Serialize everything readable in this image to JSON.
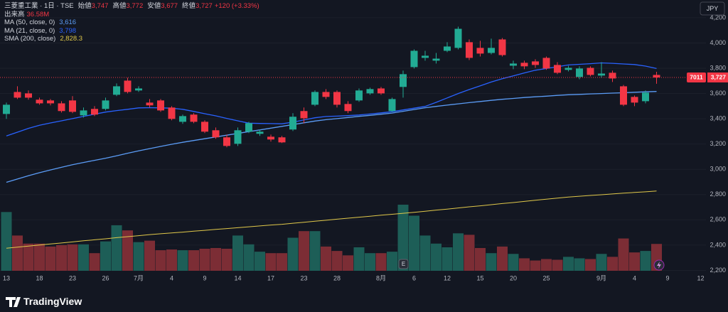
{
  "header": {
    "symbol": "三菱重工業 · 1日 · TSE",
    "ohlc": [
      {
        "label": "始値",
        "value": "3,747"
      },
      {
        "label": "高値",
        "value": "3,772"
      },
      {
        "label": "安値",
        "value": "3,677"
      },
      {
        "label": "終値",
        "value": "3,727"
      }
    ],
    "change": "+120 (+3.33%)",
    "currency": "JPY",
    "brand": "TradingView",
    "symbol_tag": "7011",
    "last_price_label": "3,727"
  },
  "chart_data": {
    "type": "candlestick",
    "title": "三菱重工業 · 1日 · TSE",
    "categories": [
      "13",
      null,
      null,
      "18",
      null,
      null,
      "23",
      null,
      null,
      "26",
      null,
      null,
      "7月",
      null,
      null,
      "4",
      null,
      null,
      "9",
      null,
      null,
      "14",
      null,
      null,
      "17",
      null,
      null,
      "23",
      null,
      null,
      "28",
      null,
      null,
      null,
      "8月",
      null,
      null,
      "6",
      null,
      null,
      "12",
      null,
      null,
      "15",
      null,
      null,
      "20",
      null,
      null,
      "25",
      null,
      null,
      null,
      null,
      "9月",
      null,
      null,
      "4",
      null,
      null,
      "9",
      null,
      null,
      "12"
    ],
    "open": [
      3438,
      3612,
      3601,
      3551,
      3545,
      3522,
      3545,
      3427,
      3478,
      3478,
      3590,
      3702,
      3624,
      3528,
      3545,
      3489,
      3376,
      3433,
      3376,
      3309,
      3253,
      3202,
      3298,
      3281,
      3258,
      3253,
      3315,
      3461,
      3511,
      3612,
      3612,
      3517,
      3545,
      3601,
      3640,
      3461,
      3652,
      3809,
      3882,
      3860,
      3938,
      3961,
      4006,
      3961,
      3921,
      4028,
      3820,
      3843,
      3854,
      3882,
      3826,
      3787,
      3731,
      3803,
      3742,
      3764,
      3657,
      3573,
      3539,
      3747,
      null,
      null,
      null,
      null
    ],
    "high": [
      3528,
      3657,
      3624,
      3567,
      3556,
      3539,
      3579,
      3489,
      3500,
      3567,
      3680,
      3725,
      3657,
      3556,
      3556,
      3500,
      3433,
      3444,
      3388,
      3331,
      3275,
      3331,
      3376,
      3315,
      3275,
      3264,
      3444,
      3489,
      3624,
      3635,
      3624,
      3539,
      3640,
      3646,
      3652,
      3567,
      3781,
      3949,
      3938,
      3921,
      4006,
      4129,
      4028,
      4017,
      4034,
      4039,
      3860,
      3860,
      3871,
      3893,
      3848,
      3820,
      3815,
      3815,
      3848,
      3781,
      3668,
      3584,
      3624,
      3772,
      null,
      null,
      null,
      null
    ],
    "low": [
      3399,
      3556,
      3551,
      3511,
      3506,
      3449,
      3444,
      3410,
      3421,
      3466,
      3579,
      3601,
      3612,
      3489,
      3455,
      3388,
      3360,
      3365,
      3287,
      3242,
      3174,
      3185,
      3287,
      3264,
      3219,
      3208,
      3303,
      3365,
      3500,
      3556,
      3489,
      3444,
      3534,
      3590,
      3590,
      3455,
      3567,
      3798,
      3860,
      3837,
      3927,
      3949,
      3865,
      3893,
      3910,
      3893,
      3792,
      3792,
      3803,
      3787,
      3753,
      3775,
      3713,
      3736,
      3725,
      3691,
      3500,
      3500,
      3522,
      3677,
      null,
      null,
      null,
      null
    ],
    "close": [
      3511,
      3567,
      3567,
      3522,
      3522,
      3461,
      3455,
      3466,
      3433,
      3545,
      3657,
      3612,
      3640,
      3506,
      3466,
      3399,
      3421,
      3376,
      3298,
      3253,
      3185,
      3309,
      3365,
      3298,
      3236,
      3213,
      3416,
      3404,
      3612,
      3573,
      3511,
      3461,
      3624,
      3635,
      3601,
      3556,
      3753,
      3938,
      3899,
      3876,
      3972,
      4112,
      3882,
      3916,
      3961,
      3904,
      3837,
      3815,
      3826,
      3798,
      3764,
      3803,
      3798,
      3747,
      3758,
      3719,
      3511,
      3528,
      3607,
      3727,
      null,
      null,
      null,
      null
    ],
    "up_color": "#22ab94",
    "down_color": "#f23645",
    "volume": {
      "name": "出来高",
      "last_label": "36.58M",
      "up_color": "#1d5e57",
      "down_color": "#7c2d35",
      "values": [
        80,
        48,
        37,
        37,
        33,
        35,
        36,
        36,
        24,
        40,
        62,
        55,
        39,
        41,
        28,
        29,
        28,
        28,
        30,
        31,
        30,
        48,
        36,
        26,
        24,
        24,
        45,
        54,
        54,
        33,
        27,
        21,
        32,
        24,
        24,
        26,
        90,
        75,
        48,
        37,
        32,
        51,
        49,
        31,
        24,
        33,
        23,
        17,
        14,
        16,
        15,
        19,
        17,
        16,
        23,
        19,
        44,
        25,
        27,
        36.58,
        null,
        null,
        null,
        null
      ]
    },
    "series": [
      {
        "name": "MA (50, close, 0)",
        "color": "#5b9cf6",
        "last_label": "3,616",
        "values": [
          2897,
          2923,
          2949,
          2973,
          2995,
          3016,
          3036,
          3054,
          3071,
          3088,
          3107,
          3127,
          3146,
          3164,
          3181,
          3198,
          3214,
          3228,
          3242,
          3256,
          3270,
          3284,
          3298,
          3312,
          3326,
          3340,
          3354,
          3368,
          3382,
          3393,
          3401,
          3410,
          3419,
          3427,
          3436,
          3445,
          3459,
          3473,
          3487,
          3498,
          3508,
          3518,
          3528,
          3537,
          3546,
          3554,
          3561,
          3568,
          3574,
          3579,
          3585,
          3590,
          3593,
          3597,
          3600,
          3603,
          3606,
          3610,
          3613,
          3616,
          null,
          null,
          null,
          null
        ]
      },
      {
        "name": "MA (21, close, 0)",
        "color": "#2962ff",
        "last_label": "3,798",
        "values": [
          3264,
          3294,
          3324,
          3349,
          3367,
          3384,
          3401,
          3419,
          3436,
          3453,
          3465,
          3475,
          3486,
          3488,
          3486,
          3484,
          3475,
          3458,
          3440,
          3423,
          3403,
          3384,
          3365,
          3363,
          3362,
          3360,
          3373,
          3391,
          3408,
          3418,
          3421,
          3425,
          3430,
          3438,
          3447,
          3456,
          3470,
          3484,
          3498,
          3530,
          3565,
          3600,
          3631,
          3661,
          3691,
          3717,
          3740,
          3763,
          3784,
          3798,
          3812,
          3826,
          3831,
          3836,
          3842,
          3839,
          3834,
          3829,
          3817,
          3798,
          null,
          null,
          null,
          null
        ]
      },
      {
        "name": "SMA (200, close)",
        "color": "#e0c84a",
        "last_label": "2,828.3",
        "values": [
          2376,
          2384,
          2392,
          2401,
          2409,
          2417,
          2425,
          2434,
          2442,
          2450,
          2459,
          2467,
          2475,
          2483,
          2490,
          2496,
          2503,
          2510,
          2517,
          2524,
          2531,
          2538,
          2545,
          2552,
          2559,
          2565,
          2573,
          2581,
          2589,
          2597,
          2605,
          2613,
          2621,
          2629,
          2637,
          2644,
          2652,
          2660,
          2668,
          2677,
          2685,
          2694,
          2703,
          2711,
          2720,
          2729,
          2737,
          2746,
          2755,
          2764,
          2772,
          2781,
          2787,
          2793,
          2799,
          2805,
          2811,
          2817,
          2822,
          2828.3,
          null,
          null,
          null,
          null
        ]
      }
    ],
    "ylim": [
      2180,
      4340
    ],
    "yticks": [
      {
        "value": 2200,
        "label": "2,200"
      },
      {
        "value": 2400,
        "label": "2,400"
      },
      {
        "value": 2600,
        "label": "2,600"
      },
      {
        "value": 2800,
        "label": "2,800"
      },
      {
        "value": 3000,
        "label": "3,000"
      },
      {
        "value": 3200,
        "label": "3,200"
      },
      {
        "value": 3400,
        "label": "3,400"
      },
      {
        "value": 3600,
        "label": "3,600"
      },
      {
        "value": 3800,
        "label": "3,800"
      },
      {
        "value": 4000,
        "label": "4,000"
      },
      {
        "value": 4200,
        "label": "4,200"
      }
    ],
    "grid": true
  }
}
